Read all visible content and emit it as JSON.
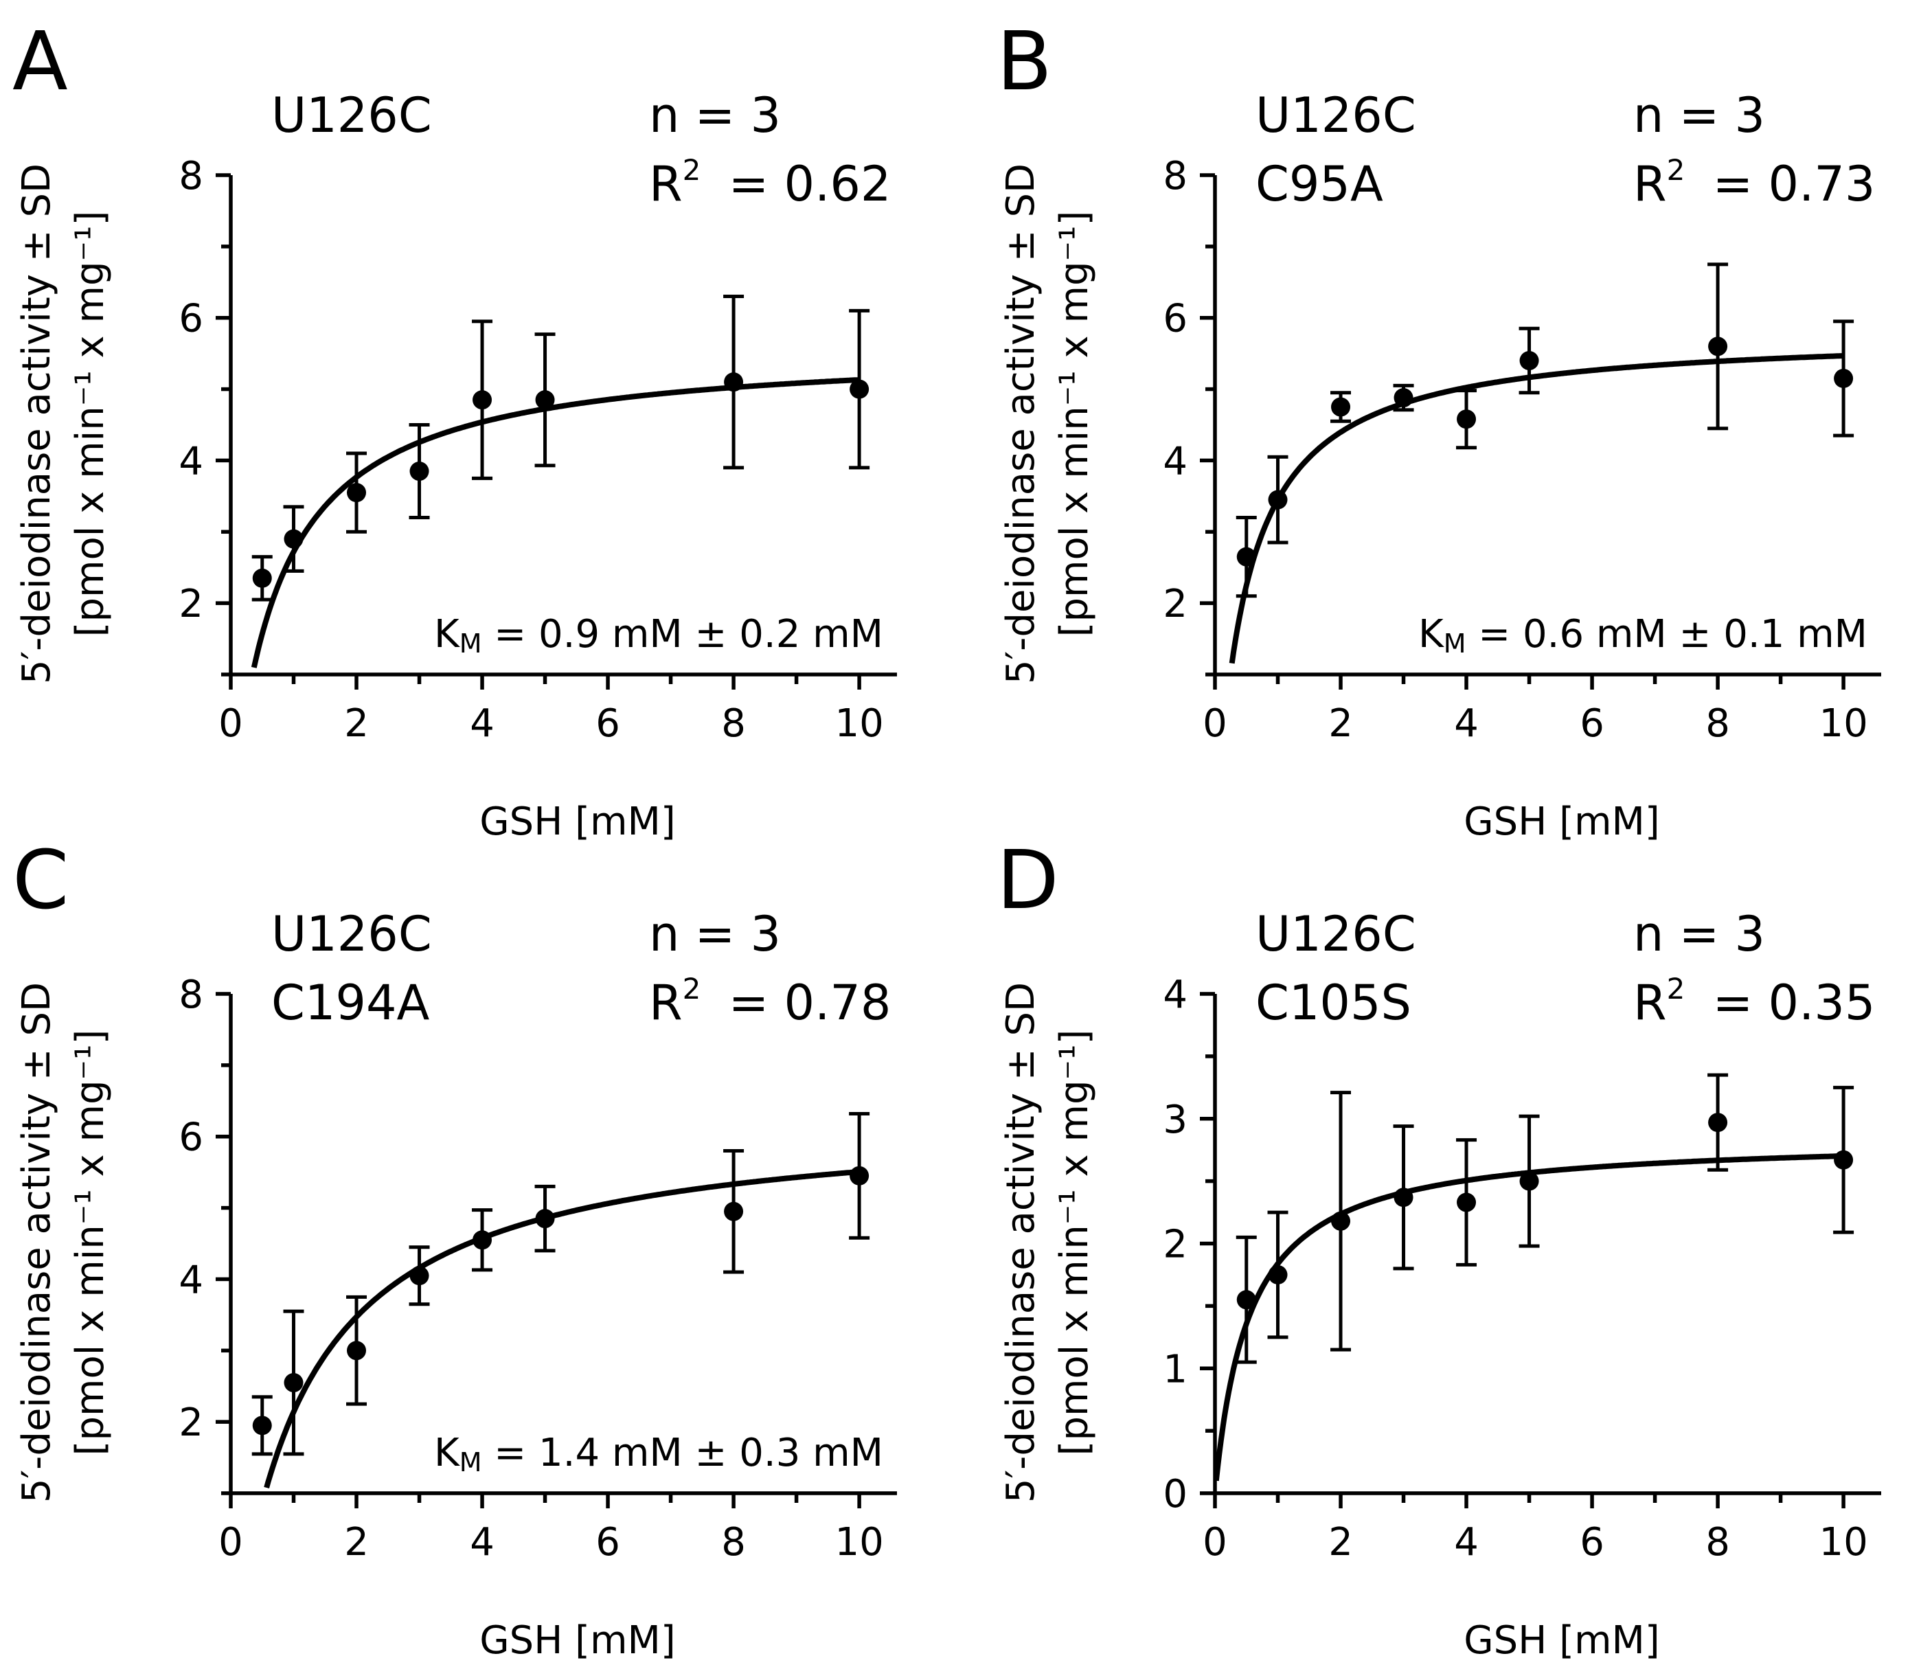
{
  "chart_data": [
    {
      "type": "scatter",
      "panel_label": "A",
      "construct": [
        "U126C"
      ],
      "n_text": "n = 3",
      "r2_value": "= 0.62",
      "km": {
        "prefix": "K",
        "sub": "M",
        "text": " = 0.9 mM ± 0.2 mM"
      },
      "fit": {
        "vmax": 5.6,
        "km": 0.9,
        "offset": 0.15
      },
      "xlabel": "GSH [mM]",
      "ylabel_line1": "5′-deiodinase activity ± SD",
      "ylabel_line2": "[pmol x min⁻¹ x mg⁻¹]",
      "xlim": [
        0,
        10.6
      ],
      "ylim": [
        1,
        8
      ],
      "xticks": [
        "0",
        "2",
        "4",
        "6",
        "8",
        "10"
      ],
      "yticks": [
        "2",
        "4",
        "6",
        "8"
      ],
      "x": [
        0.5,
        1,
        2,
        3,
        4,
        5,
        8,
        10
      ],
      "y": [
        2.35,
        2.9,
        3.55,
        3.85,
        4.85,
        4.85,
        5.1,
        5.0
      ],
      "err": [
        0.3,
        0.45,
        0.55,
        0.65,
        1.1,
        0.92,
        1.2,
        1.1
      ]
    },
    {
      "type": "scatter",
      "panel_label": "B",
      "construct": [
        "U126C",
        "C95A"
      ],
      "n_text": "n = 3",
      "r2_value": "= 0.73",
      "km": {
        "prefix": "K",
        "sub": "M",
        "text": " = 0.6 mM ± 0.1 mM"
      },
      "fit": {
        "vmax": 5.8,
        "km": 0.6,
        "offset": 0.12
      },
      "xlabel": "GSH [mM]",
      "ylabel_line1": "5′-deiodinase activity ± SD",
      "ylabel_line2": "[pmol x min⁻¹ x mg⁻¹]",
      "xlim": [
        0,
        10.6
      ],
      "ylim": [
        1,
        8
      ],
      "xticks": [
        "0",
        "2",
        "4",
        "6",
        "8",
        "10"
      ],
      "yticks": [
        "2",
        "4",
        "6",
        "8"
      ],
      "x": [
        0.5,
        1,
        2,
        3,
        4,
        5,
        8,
        10
      ],
      "y": [
        2.65,
        3.45,
        4.75,
        4.88,
        4.58,
        5.4,
        5.6,
        5.15
      ],
      "err": [
        0.55,
        0.6,
        0.2,
        0.17,
        0.4,
        0.45,
        1.15,
        0.8
      ]
    },
    {
      "type": "scatter",
      "panel_label": "C",
      "construct": [
        "U126C",
        "C194A"
      ],
      "n_text": "n = 3",
      "r2_value": "= 0.78",
      "km": {
        "prefix": "K",
        "sub": "M",
        "text": " = 1.4 mM ± 0.3 mM"
      },
      "fit": {
        "vmax": 6.3,
        "km": 1.4,
        "offset": 0.28
      },
      "xlabel": "GSH [mM]",
      "ylabel_line1": "5′-deiodinase activity ± SD",
      "ylabel_line2": "[pmol x min⁻¹ x mg⁻¹]",
      "xlim": [
        0,
        10.6
      ],
      "ylim": [
        1,
        8
      ],
      "xticks": [
        "0",
        "2",
        "4",
        "6",
        "8",
        "10"
      ],
      "yticks": [
        "2",
        "4",
        "6",
        "8"
      ],
      "x": [
        0.5,
        1,
        2,
        3,
        4,
        5,
        8,
        10
      ],
      "y": [
        1.95,
        2.55,
        3.0,
        4.05,
        4.55,
        4.85,
        4.95,
        5.45
      ],
      "err": [
        0.4,
        1.0,
        0.75,
        0.4,
        0.42,
        0.45,
        0.85,
        0.87
      ]
    },
    {
      "type": "scatter",
      "panel_label": "D",
      "construct": [
        "U126C",
        "C105S"
      ],
      "n_text": "n = 3",
      "r2_value": "= 0.35",
      "km": null,
      "fit": {
        "vmax": 2.85,
        "km": 0.55,
        "offset": 0.0
      },
      "xlabel": "GSH [mM]",
      "ylabel_line1": "5′-deiodinase activity ± SD",
      "ylabel_line2": "[pmol x min⁻¹ x mg⁻¹]",
      "xlim": [
        0,
        10.6
      ],
      "ylim": [
        0,
        4
      ],
      "xticks": [
        "0",
        "2",
        "4",
        "6",
        "8",
        "10"
      ],
      "yticks": [
        "0",
        "1",
        "2",
        "3",
        "4"
      ],
      "x": [
        0.5,
        1,
        2,
        3,
        4,
        5,
        8,
        10
      ],
      "y": [
        1.55,
        1.75,
        2.18,
        2.37,
        2.33,
        2.5,
        2.97,
        2.67
      ],
      "err": [
        0.5,
        0.5,
        1.03,
        0.57,
        0.5,
        0.52,
        0.38,
        0.58
      ]
    }
  ]
}
